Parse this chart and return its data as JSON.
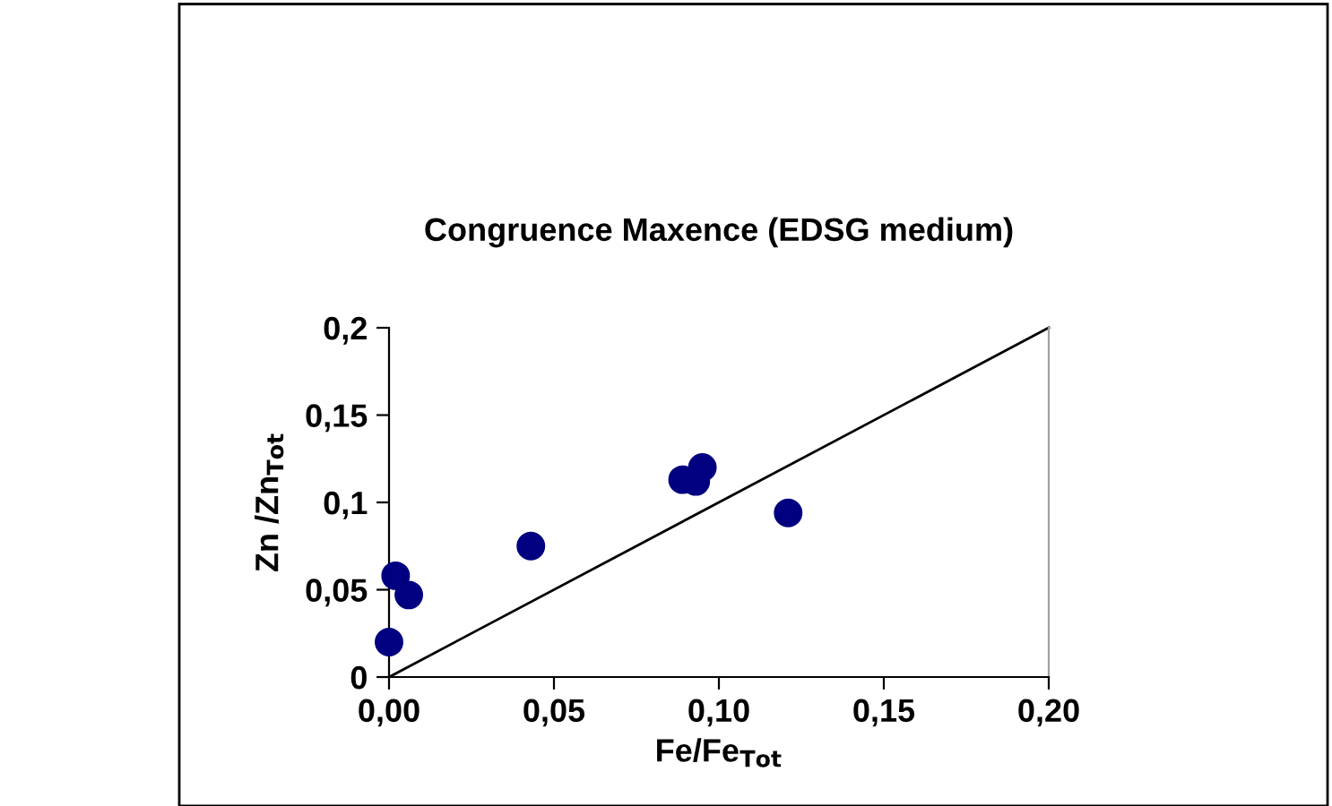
{
  "chart_data": {
    "type": "scatter",
    "title": "Congruence Maxence (EDSG medium)",
    "xlabel": "Fe/Fe$_{Tot}$",
    "ylabel": "Zn /Zn$_{Tot}$",
    "xlim": [
      0,
      0.2
    ],
    "ylim": [
      0,
      0.2
    ],
    "xticks": [
      {
        "value": 0,
        "label": "0,00"
      },
      {
        "value": 0.05,
        "label": "0,05"
      },
      {
        "value": 0.1,
        "label": "0,10"
      },
      {
        "value": 0.15,
        "label": "0,15"
      },
      {
        "value": 0.2,
        "label": "0,20"
      }
    ],
    "yticks": [
      0,
      {
        "value": 0.05,
        "label": "0,05"
      },
      {
        "value": 0.1,
        "label": "0,1"
      },
      {
        "value": 0.15,
        "label": "0,15"
      },
      {
        "value": 0.2,
        "label": "0,2"
      }
    ],
    "grid": false,
    "legend": false,
    "series": [
      {
        "color": "#000080",
        "marker": "circle",
        "x": [
          0.0,
          0.002,
          0.006,
          0.043,
          0.089,
          0.093,
          0.095,
          0.121
        ],
        "values": [
          0.02,
          0.058,
          0.047,
          0.075,
          0.113,
          0.112,
          0.12,
          0.094
        ]
      },
      {
        "type": "line",
        "color": "#000000",
        "x": [
          0,
          0.2
        ],
        "values": [
          0,
          0.2
        ],
        "marker": "none",
        "line_style": "solid"
      }
    ]
  }
}
